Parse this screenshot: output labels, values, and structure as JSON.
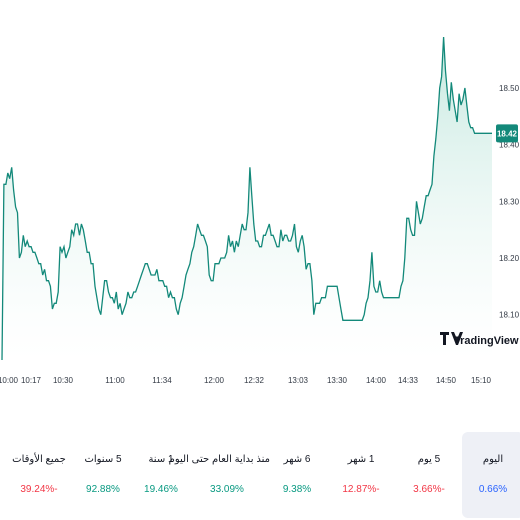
{
  "colors": {
    "line": "#13897a",
    "fill_top": "#bfe6dc",
    "fill_bottom": "#ffffff",
    "positive": "#089981",
    "negative": "#f23645",
    "neutral": "#2962ff",
    "tag_bg": "#13897a"
  },
  "chart_data": {
    "type": "area",
    "title": "",
    "xlabel": "",
    "ylabel": "",
    "ylim": [
      18.02,
      18.62
    ],
    "grid": false,
    "x_ticks": [
      "10:00",
      "10:17",
      "10:30",
      "11:00",
      "11:34",
      "12:00",
      "12:32",
      "13:03",
      "13:30",
      "14:00",
      "14:33",
      "14:50",
      "15:10"
    ],
    "y_ticks": [
      "18.10",
      "18.20",
      "18.30",
      "18.40",
      "18.50"
    ],
    "last_value_label": "18.42",
    "logo_text": "TradingView",
    "logo_glyph": "TV",
    "series": [
      {
        "x_index_range": [
          0,
          255
        ],
        "values": [
          18.02,
          18.33,
          18.33,
          18.35,
          18.34,
          18.36,
          18.32,
          18.29,
          18.28,
          18.2,
          18.21,
          18.24,
          18.22,
          18.23,
          18.22,
          18.22,
          18.21,
          18.21,
          18.2,
          18.19,
          18.19,
          18.17,
          18.18,
          18.16,
          18.16,
          18.15,
          18.11,
          18.12,
          18.12,
          18.14,
          18.22,
          18.21,
          18.22,
          18.2,
          18.21,
          18.22,
          18.25,
          18.24,
          18.26,
          18.26,
          18.24,
          18.26,
          18.25,
          18.23,
          18.21,
          18.21,
          18.19,
          18.19,
          18.15,
          18.13,
          18.11,
          18.1,
          18.13,
          18.16,
          18.16,
          18.14,
          18.13,
          18.13,
          18.12,
          18.14,
          18.11,
          18.12,
          18.1,
          18.11,
          18.12,
          18.14,
          18.13,
          18.13,
          18.14,
          18.14,
          18.15,
          18.16,
          18.17,
          18.18,
          18.19,
          18.19,
          18.18,
          18.17,
          18.17,
          18.17,
          18.18,
          18.16,
          18.16,
          18.16,
          18.15,
          18.15,
          18.13,
          18.14,
          18.13,
          18.13,
          18.11,
          18.1,
          18.12,
          18.13,
          18.15,
          18.17,
          18.18,
          18.19,
          18.21,
          18.22,
          18.24,
          18.26,
          18.25,
          18.24,
          18.24,
          18.23,
          18.22,
          18.17,
          18.16,
          18.16,
          18.19,
          18.19,
          18.19,
          18.2,
          18.2,
          18.2,
          18.21,
          18.24,
          18.22,
          18.23,
          18.21,
          18.23,
          18.22,
          18.24,
          18.26,
          18.25,
          18.25,
          18.28,
          18.36,
          18.31,
          18.26,
          18.23,
          18.23,
          18.22,
          18.22,
          18.24,
          18.24,
          18.25,
          18.26,
          18.24,
          18.24,
          18.23,
          18.22,
          18.22,
          18.25,
          18.23,
          18.24,
          18.24,
          18.23,
          18.23,
          18.24,
          18.26,
          18.22,
          18.21,
          18.23,
          18.24,
          18.22,
          18.18,
          18.19,
          18.19,
          18.16,
          18.1,
          18.12,
          18.12,
          18.12,
          18.13,
          18.13,
          18.13,
          18.15,
          18.15,
          18.15,
          18.15,
          18.15,
          18.15,
          18.13,
          18.11,
          18.09,
          18.09,
          18.09,
          18.09,
          18.09,
          18.09,
          18.09,
          18.09,
          18.09,
          18.09,
          18.09,
          18.1,
          18.12,
          18.13,
          18.16,
          18.21,
          18.15,
          18.14,
          18.14,
          18.16,
          18.14,
          18.13,
          18.13,
          18.13,
          18.13,
          18.13,
          18.13,
          18.13,
          18.13,
          18.13,
          18.15,
          18.16,
          18.2,
          18.27,
          18.27,
          18.25,
          18.24,
          18.24,
          18.3,
          18.28,
          18.26,
          18.27,
          18.29,
          18.31,
          18.31,
          18.32,
          18.33,
          18.38,
          18.41,
          18.45,
          18.5,
          18.52,
          18.59,
          18.53,
          18.49,
          18.46,
          18.51,
          18.48,
          18.46,
          18.44,
          18.49,
          18.47,
          18.48,
          18.5,
          18.47,
          18.44,
          18.43,
          18.43,
          18.42,
          18.42,
          18.42,
          18.42,
          18.42,
          18.42,
          18.42,
          18.42,
          18.42,
          18.42
        ]
      }
    ]
  },
  "performance": [
    {
      "label": "جميع الأوقات",
      "value": "39.24%-",
      "tone": "negative"
    },
    {
      "label": "5 سنوات",
      "value": "92.88%",
      "tone": "positive"
    },
    {
      "label": "1 سنة",
      "value": "19.46%",
      "tone": "positive"
    },
    {
      "label": "منذ بداية العام حتى اليوم",
      "value": "33.09%",
      "tone": "positive"
    },
    {
      "label": "6 شهر",
      "value": "9.38%",
      "tone": "positive"
    },
    {
      "label": "1 شهر",
      "value": "12.87%-",
      "tone": "negative"
    },
    {
      "label": "5 يوم",
      "value": "3.66%-",
      "tone": "negative"
    },
    {
      "label": "اليوم",
      "value": "0.66%",
      "tone": "neutral",
      "active": true
    }
  ]
}
